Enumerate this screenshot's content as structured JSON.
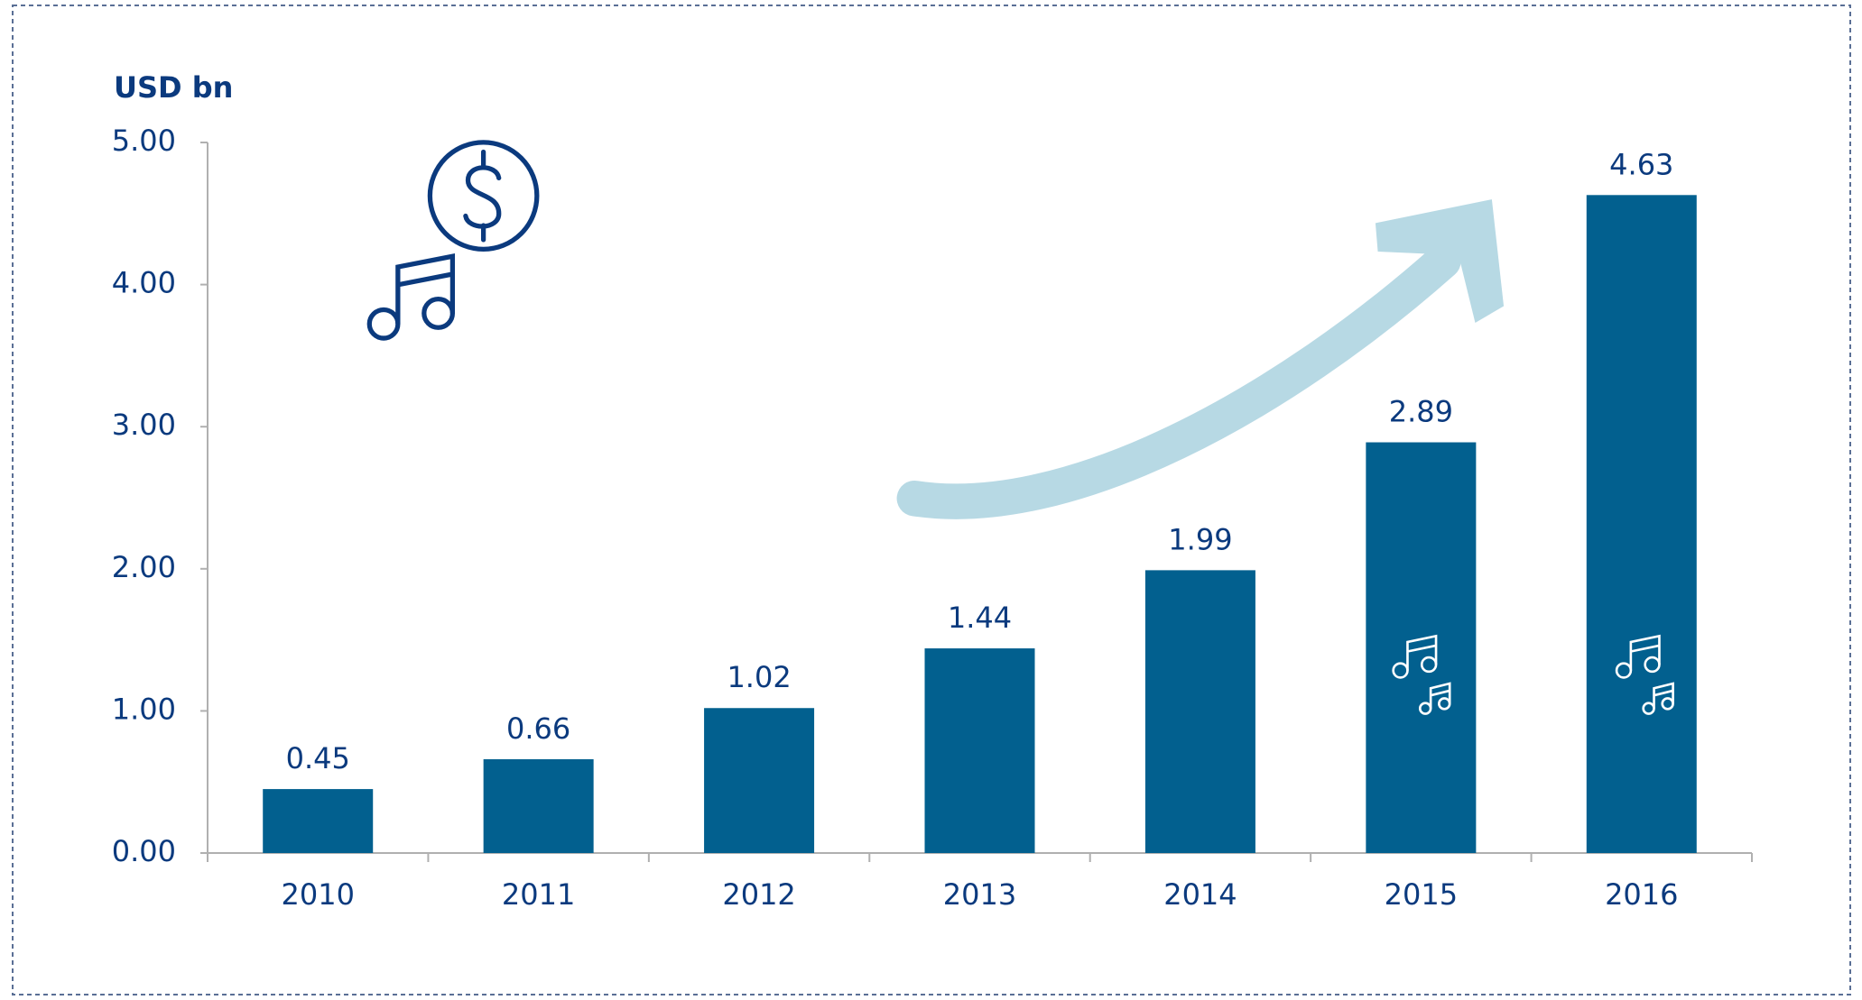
{
  "chart_data": {
    "type": "bar",
    "y_label": "USD bn",
    "categories": [
      "2010",
      "2011",
      "2012",
      "2013",
      "2014",
      "2015",
      "2016"
    ],
    "values": [
      0.45,
      0.66,
      1.02,
      1.44,
      1.99,
      2.89,
      4.63
    ],
    "color": "#02608f",
    "ylim": [
      0,
      5
    ],
    "yticks": [
      {
        "value": 0,
        "label": "0.00"
      },
      {
        "value": 1,
        "label": "1.00"
      },
      {
        "value": 2,
        "label": "2.00"
      },
      {
        "value": 3,
        "label": "3.00"
      },
      {
        "value": 4,
        "label": "4.00"
      },
      {
        "value": 5,
        "label": "5.00"
      }
    ],
    "grid": false
  }
}
